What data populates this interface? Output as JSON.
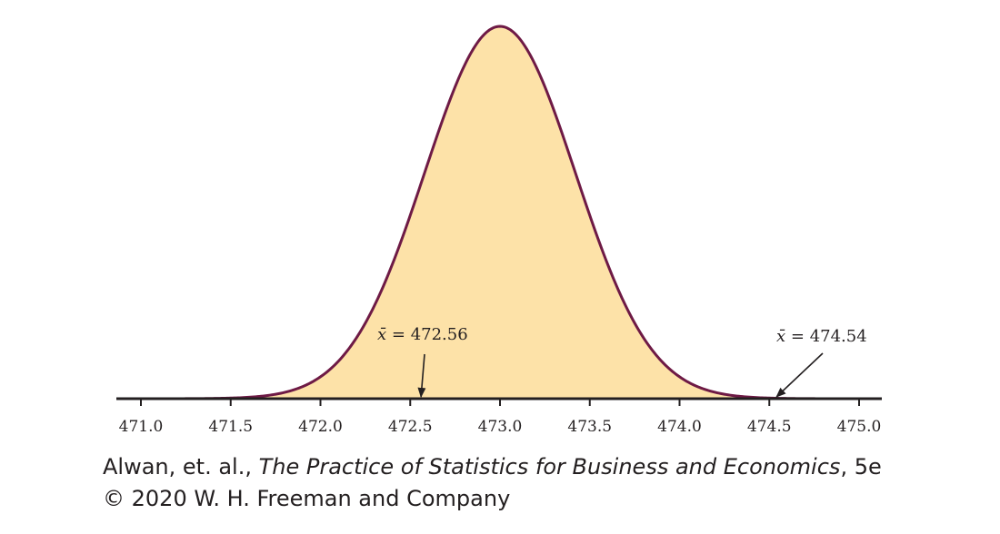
{
  "chart_data": {
    "type": "area",
    "distribution": "normal",
    "mean": 473.0,
    "sd": 0.42,
    "xlim": [
      471.0,
      475.0
    ],
    "x_ticks": [
      "471.0",
      "471.5",
      "472.0",
      "472.5",
      "473.0",
      "473.5",
      "474.0",
      "474.5",
      "475.0"
    ],
    "fill_color": "#fde2a8",
    "line_color": "#6e1a45",
    "axis_color": "#231f20",
    "annotations": [
      {
        "symbol": "x̄",
        "equals": " = ",
        "value": "472.56",
        "x": 472.56
      },
      {
        "symbol": "x̄",
        "equals": " = ",
        "value": "474.54",
        "x": 474.54
      }
    ]
  },
  "credit": {
    "authors": "Alwan, et. al., ",
    "book_title": "The Practice of Statistics for Business and Economics",
    "edition": ", 5e",
    "copyright": "© 2020 W. H. Freeman and Company"
  }
}
